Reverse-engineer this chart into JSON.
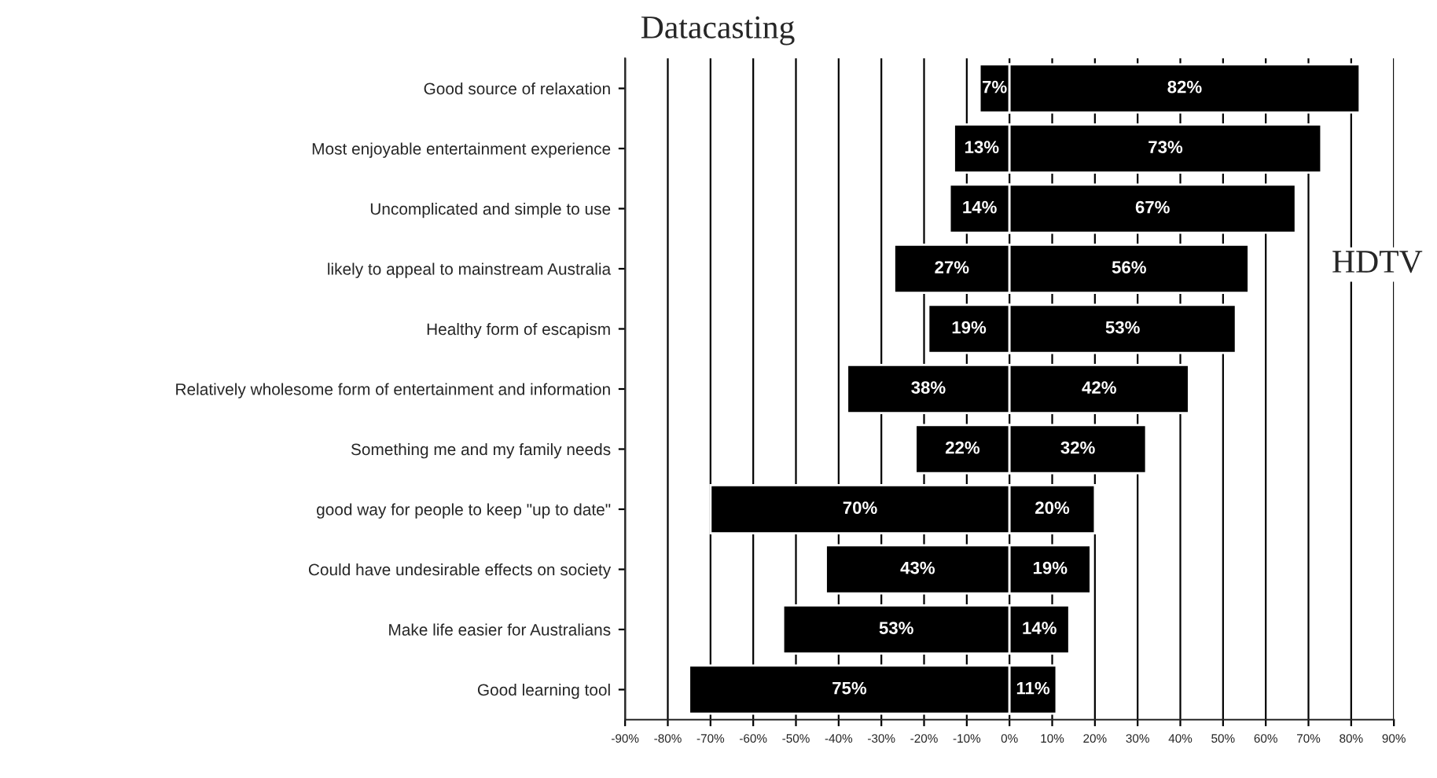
{
  "chart_data": {
    "type": "bar",
    "orientation": "horizontal",
    "title": "Datacasting",
    "categories": [
      "Good source of relaxation",
      "Most enjoyable entertainment experience",
      "Uncomplicated and simple to use",
      "likely to appeal to mainstream Australia",
      "Healthy form of escapism",
      "Relatively wholesome form of entertainment and information",
      "Something me and my family needs",
      "good way for people to keep \"up to date\"",
      "Could have undesirable effects on society",
      "Make life easier for Australians",
      "Good learning tool"
    ],
    "series": [
      {
        "color": "#000000",
        "values": [
          7,
          13,
          14,
          27,
          19,
          38,
          22,
          70,
          43,
          53,
          75
        ],
        "base": [
          -7,
          -13,
          -14,
          -27,
          -19,
          -38,
          -22,
          -70,
          -43,
          -53,
          -75
        ],
        "value_labels": [
          "7%",
          "13%",
          "14%",
          "27%",
          "19%",
          "38%",
          "22%",
          "70%",
          "43%",
          "53%",
          "75%"
        ]
      },
      {
        "color": "#000000",
        "values": [
          82,
          73,
          67,
          56,
          53,
          42,
          32,
          20,
          19,
          14,
          11
        ],
        "value_labels": [
          "82%",
          "73%",
          "67%",
          "56%",
          "53%",
          "42%",
          "32%",
          "20%",
          "19%",
          "14%",
          "11%"
        ]
      }
    ],
    "xlim": [
      -90,
      90
    ],
    "xticks": [
      {
        "value": -90,
        "label": "-90%"
      },
      {
        "value": -80,
        "label": "-80%"
      },
      {
        "value": -70,
        "label": "-70%"
      },
      {
        "value": -60,
        "label": "-60%"
      },
      {
        "value": -50,
        "label": "-50%"
      },
      {
        "value": -40,
        "label": "-40%"
      },
      {
        "value": -30,
        "label": "-30%"
      },
      {
        "value": -20,
        "label": "-20%"
      },
      {
        "value": -10,
        "label": "-10%"
      },
      {
        "value": 0,
        "label": "0%"
      },
      {
        "value": 10,
        "label": "10%"
      },
      {
        "value": 20,
        "label": "20%"
      },
      {
        "value": 30,
        "label": "30%"
      },
      {
        "value": 40,
        "label": "40%"
      },
      {
        "value": 50,
        "label": "50%"
      },
      {
        "value": 60,
        "label": "60%"
      },
      {
        "value": 70,
        "label": "70%"
      },
      {
        "value": 80,
        "label": "80%"
      },
      {
        "value": 90,
        "label": "90%"
      }
    ],
    "grid": "x",
    "legend": false,
    "annotations": [
      "HDTV"
    ]
  }
}
